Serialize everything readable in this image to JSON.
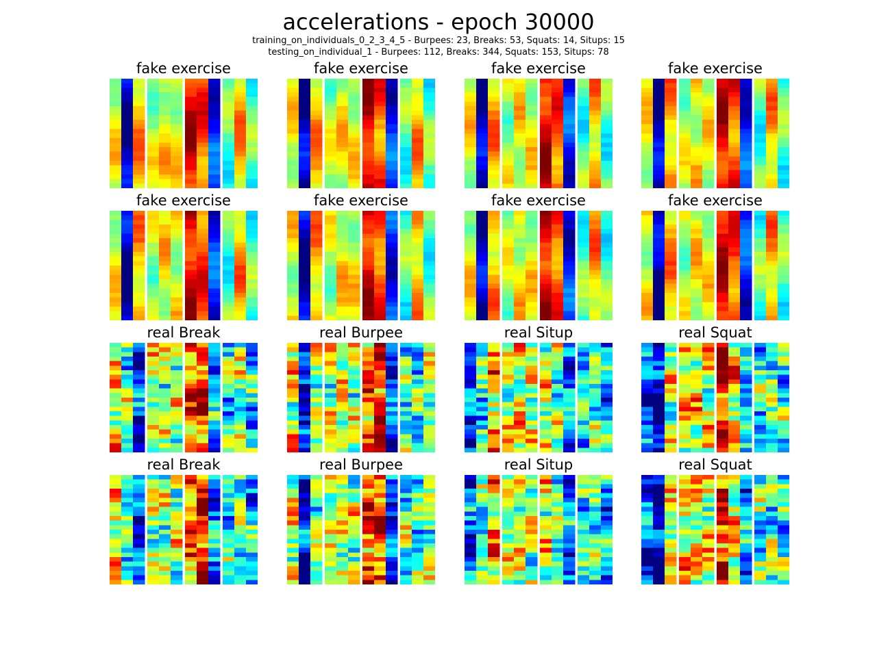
{
  "figure": {
    "title": "accelerations - epoch 30000",
    "subtitle_lines": [
      "training_on_individuals_0_2_3_4_5 - Burpees: 23, Breaks: 53, Squats: 14, Situps: 15",
      "testing_on_individual_1 - Burpees: 112, Breaks: 344, Squats: 153, Situps: 78"
    ]
  },
  "colormap": "jet",
  "chart_data": {
    "type": "heatmap",
    "rows_per_panel": 24,
    "columns_per_panel": 12,
    "column_groups": [
      3,
      3,
      3,
      3
    ],
    "value_range": [
      0,
      1
    ],
    "panels": [
      {
        "title": "fake exercise",
        "row": 0,
        "col": 0
      },
      {
        "title": "fake exercise",
        "row": 0,
        "col": 1
      },
      {
        "title": "fake exercise",
        "row": 0,
        "col": 2
      },
      {
        "title": "fake exercise",
        "row": 0,
        "col": 3
      },
      {
        "title": "fake exercise",
        "row": 1,
        "col": 0
      },
      {
        "title": "fake exercise",
        "row": 1,
        "col": 1
      },
      {
        "title": "fake exercise",
        "row": 1,
        "col": 2
      },
      {
        "title": "fake exercise",
        "row": 1,
        "col": 3
      },
      {
        "title": "real Break",
        "row": 2,
        "col": 0
      },
      {
        "title": "real Burpee",
        "row": 2,
        "col": 1
      },
      {
        "title": "real Situp",
        "row": 2,
        "col": 2
      },
      {
        "title": "real Squat",
        "row": 2,
        "col": 3
      },
      {
        "title": "real Break",
        "row": 3,
        "col": 0
      },
      {
        "title": "real Burpee",
        "row": 3,
        "col": 1
      },
      {
        "title": "real Situp",
        "row": 3,
        "col": 2
      },
      {
        "title": "real Squat",
        "row": 3,
        "col": 3
      }
    ]
  }
}
